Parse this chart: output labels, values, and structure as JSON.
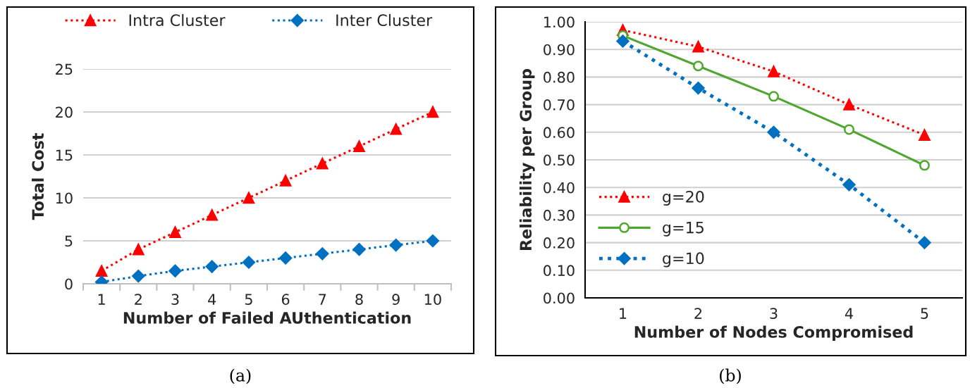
{
  "chart_data": [
    {
      "type": "line",
      "xlabel": "Number of Failed AUthentication",
      "ylabel": "Total Cost",
      "categories": [
        "1",
        "2",
        "3",
        "4",
        "5",
        "6",
        "7",
        "8",
        "9",
        "10"
      ],
      "series": [
        {
          "name": "Intra Cluster",
          "color": "#ff0000",
          "marker": "triangle",
          "line_style": "dotted",
          "values": [
            1.5,
            4,
            6,
            8,
            10,
            12,
            14,
            16,
            18,
            20
          ]
        },
        {
          "name": "Inter Cluster",
          "color": "#0070c0",
          "marker": "diamond",
          "line_style": "dotted",
          "values": [
            0.2,
            0.9,
            1.5,
            2,
            2.5,
            3,
            3.5,
            4,
            4.5,
            5
          ]
        }
      ],
      "ylim": [
        0,
        25
      ],
      "yticks": [
        0,
        5,
        10,
        15,
        20,
        25
      ],
      "grid": "y",
      "legend": "top",
      "annotations": [
        "(a)"
      ]
    },
    {
      "type": "line",
      "xlabel": "Number of Nodes Compromised",
      "ylabel": "Reliability per Group",
      "categories": [
        "1",
        "2",
        "3",
        "4",
        "5"
      ],
      "series": [
        {
          "name": "g=20",
          "color": "#ff0000",
          "marker": "triangle",
          "line_style": "dotted",
          "values": [
            0.97,
            0.91,
            0.82,
            0.7,
            0.59
          ]
        },
        {
          "name": "g=15",
          "color": "#4ea72e",
          "marker": "circle",
          "line_style": "solid",
          "values": [
            0.95,
            0.84,
            0.73,
            0.61,
            0.48
          ]
        },
        {
          "name": "g=10",
          "color": "#0070c0",
          "marker": "diamond",
          "line_style": "dotted",
          "values": [
            0.93,
            0.76,
            0.6,
            0.41,
            0.2
          ]
        }
      ],
      "ylim": [
        0,
        1.0
      ],
      "yticks": [
        {
          "value": 0,
          "label": "0.00"
        },
        {
          "value": 0.1,
          "label": "0.10"
        },
        {
          "value": 0.2,
          "label": "0.20"
        },
        {
          "value": 0.3,
          "label": "0.30"
        },
        {
          "value": 0.4,
          "label": "0.40"
        },
        {
          "value": 0.5,
          "label": "0.50"
        },
        {
          "value": 0.6,
          "label": "0.60"
        },
        {
          "value": 0.7,
          "label": "0.70"
        },
        {
          "value": 0.8,
          "label": "0.80"
        },
        {
          "value": 0.9,
          "label": "0.90"
        },
        {
          "value": 1.0,
          "label": "1.00"
        }
      ],
      "grid": "y",
      "legend": "lower left",
      "annotations": [
        "(b)"
      ]
    }
  ]
}
